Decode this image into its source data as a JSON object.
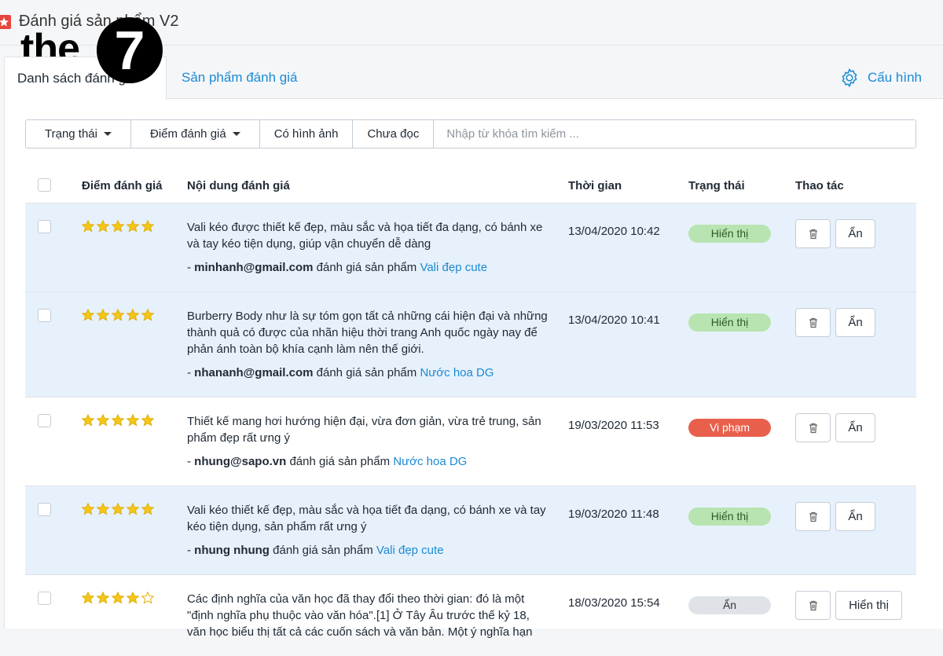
{
  "header": {
    "title": "Đánh giá sản phẩm V2",
    "logo_text": "the",
    "logo_badge": "7"
  },
  "tabs": [
    {
      "label": "Danh sách đánh giá",
      "active": true
    },
    {
      "label": "Sản phẩm đánh giá",
      "active": false
    }
  ],
  "settings_label": "Cấu hình",
  "filters": [
    {
      "label": "Trạng thái",
      "dropdown": true
    },
    {
      "label": "Điểm đánh giá",
      "dropdown": true
    },
    {
      "label": "Có hình ảnh",
      "dropdown": false
    },
    {
      "label": "Chưa đọc",
      "dropdown": false
    }
  ],
  "search_placeholder": "Nhập từ khóa tìm kiếm ...",
  "table": {
    "columns": [
      "Điểm đánh giá",
      "Nội dung đánh giá",
      "Thời gian",
      "Trạng thái",
      "Thao tác"
    ],
    "rows": [
      {
        "rating": 5,
        "content": "Vali kéo được thiết kế đẹp, màu sắc và họa tiết đa dạng, có bánh xe và tay kéo tiện dụng, giúp vận chuyển dễ dàng",
        "author": "minhanh@gmail.com",
        "action_text": "đánh giá sản phẩm",
        "product": "Vali đẹp cute",
        "time": "13/04/2020 10:42",
        "status": "Hiển thị",
        "status_color": "#b7e4b0",
        "status_text_color": "#2d5a27",
        "toggle": "Ẩn",
        "highlighted": true
      },
      {
        "rating": 5,
        "content": "Burberry Body như là sự tóm gọn tất cả những cái hiện đại và những thành quả có được của nhãn hiệu thời trang Anh quốc ngày nay để phản ánh toàn bộ khía cạnh làm nên thế giới.",
        "author": "nhananh@gmail.com",
        "action_text": "đánh giá sản phẩm",
        "product": "Nước hoa DG",
        "time": "13/04/2020 10:41",
        "status": "Hiển thị",
        "status_color": "#b7e4b0",
        "status_text_color": "#2d5a27",
        "toggle": "Ẩn",
        "highlighted": true
      },
      {
        "rating": 5,
        "content": "Thiết kế mang hơi hướng hiện đại, vừa đơn giản, vừa trẻ trung, sản phẩm đẹp rất ưng ý",
        "author": "nhung@sapo.vn",
        "action_text": "đánh giá sản phẩm",
        "product": "Nước hoa DG",
        "time": "19/03/2020 11:53",
        "status": "Vi phạm",
        "status_color": "#e8604c",
        "status_text_color": "#ffffff",
        "toggle": "Ẩn",
        "highlighted": false
      },
      {
        "rating": 5,
        "content": "Vali kéo thiết kế đẹp, màu sắc và họa tiết đa dạng, có bánh xe và tay kéo tiện dụng, sản phẩm rất ưng ý",
        "author": "nhung nhung",
        "action_text": "đánh giá sản phẩm",
        "product": "Vali đẹp cute",
        "time": "19/03/2020 11:48",
        "status": "Hiển thị",
        "status_color": "#b7e4b0",
        "status_text_color": "#2d5a27",
        "toggle": "Ẩn",
        "highlighted": true
      },
      {
        "rating": 4,
        "content": "Các định nghĩa của văn học đã thay đổi theo thời gian: đó là một \"định nghĩa phụ thuộc vào văn hóa\".[1] Ở Tây Âu trước thế kỷ 18, văn học biểu thị tất cả các cuốn sách và văn bản. Một ý nghĩa hạn",
        "author": "",
        "action_text": "",
        "product": "",
        "time": "18/03/2020 15:54",
        "status": "Ẩn",
        "status_color": "#dfe3e8",
        "status_text_color": "#333333",
        "toggle": "Hiển thị",
        "highlighted": false
      }
    ]
  }
}
